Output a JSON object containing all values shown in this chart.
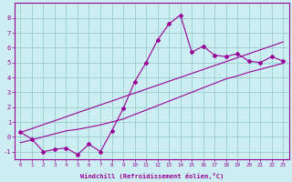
{
  "xlabel": "Windchill (Refroidissement éolien,°C)",
  "bg_color": "#cceef2",
  "line_color": "#990099",
  "grid_color": "#99cccc",
  "x_data": [
    0,
    1,
    2,
    3,
    4,
    5,
    6,
    7,
    8,
    9,
    10,
    11,
    12,
    13,
    14,
    15,
    16,
    17,
    18,
    19,
    20,
    21,
    22,
    23
  ],
  "y_main": [
    0.3,
    -0.15,
    -1.0,
    -0.85,
    -0.75,
    -1.2,
    -0.5,
    -1.0,
    0.4,
    1.9,
    3.7,
    5.0,
    6.5,
    7.6,
    8.2,
    5.7,
    6.1,
    5.5,
    5.4,
    5.6,
    5.1,
    5.0,
    5.4,
    5.1
  ],
  "y_upper": [
    0.3,
    0.55,
    0.82,
    1.08,
    1.35,
    1.62,
    1.88,
    2.15,
    2.41,
    2.68,
    2.94,
    3.21,
    3.47,
    3.74,
    4.0,
    4.27,
    4.53,
    4.8,
    5.06,
    5.33,
    5.59,
    5.86,
    6.12,
    6.39
  ],
  "y_lower": [
    -0.4,
    -0.2,
    0.0,
    0.2,
    0.4,
    0.5,
    0.65,
    0.8,
    1.0,
    1.2,
    1.5,
    1.8,
    2.1,
    2.4,
    2.7,
    3.0,
    3.3,
    3.6,
    3.9,
    4.1,
    4.35,
    4.55,
    4.75,
    4.95
  ],
  "ylim": [
    -1.5,
    9.0
  ],
  "xlim": [
    -0.5,
    23.5
  ],
  "yticks": [
    -1,
    0,
    1,
    2,
    3,
    4,
    5,
    6,
    7,
    8
  ],
  "xticks": [
    0,
    1,
    2,
    3,
    4,
    5,
    6,
    7,
    8,
    9,
    10,
    11,
    12,
    13,
    14,
    15,
    16,
    17,
    18,
    19,
    20,
    21,
    22,
    23
  ]
}
